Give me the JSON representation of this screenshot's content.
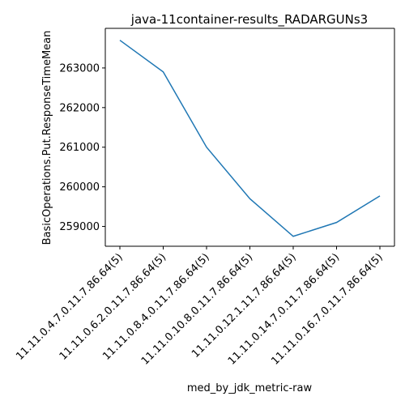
{
  "chart_data": {
    "type": "line",
    "title": "java-11container-results_RADARGUNs3",
    "xlabel": "med_by_jdk_metric-raw",
    "ylabel": "BasicOperations.Put.ResponseTimeMean",
    "categories": [
      "11.11.0.4.7.0.11.7.86.64(5)",
      "11.11.0.6.2.0.11.7.86.64(5)",
      "11.11.0.8.4.0.11.7.86.64(5)",
      "11.11.0.10.8.0.11.7.86.64(5)",
      "11.11.0.12.1.11.7.86.64(5)",
      "11.11.0.14.7.0.11.7.86.64(5)",
      "11.11.0.16.7.0.11.7.86.64(5)"
    ],
    "series": [
      {
        "values": [
          263700,
          262900,
          261000,
          259700,
          258750,
          259100,
          259770
        ]
      }
    ],
    "yticks": [
      "259000",
      "260000",
      "261000",
      "262000",
      "263000"
    ],
    "ylim": [
      258500,
      264000
    ],
    "grid": false,
    "line_color": "#1f77b4"
  }
}
